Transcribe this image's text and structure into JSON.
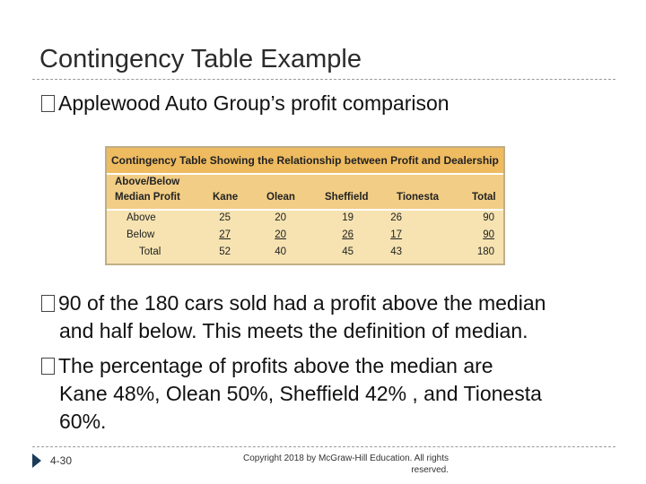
{
  "slide": {
    "title": "Contingency Table Example",
    "bullets": {
      "b1": "Applewood Auto Group’s profit comparison",
      "b2_line1": "90 of the 180 cars sold had a profit above the median",
      "b2_line2": "and half below. This meets the definition of median.",
      "b3_line1": "The percentage of profits above the median are",
      "b3_line2": "Kane 48%, Olean 50%, Sheffield 42% , and Tionesta",
      "b3_line3": "60%."
    }
  },
  "table": {
    "caption": "Contingency Table Showing the Relationship between Profit and Dealership",
    "header": {
      "row_label_line1": "Above/Below",
      "row_label_line2": "Median Profit",
      "columns": [
        "Kane",
        "Olean",
        "Sheffield",
        "Tionesta",
        "Total"
      ]
    },
    "rows": [
      {
        "label": "Above",
        "values": [
          "25",
          "20",
          "19",
          "26",
          "90"
        ]
      },
      {
        "label": "Below",
        "values": [
          "27",
          "20",
          "26",
          "17",
          "90"
        ]
      },
      {
        "label": "Total",
        "values": [
          "52",
          "40",
          "45",
          "43",
          "180"
        ]
      }
    ],
    "colors": {
      "caption_bg": "#eebb60",
      "header_bg": "#f2cd85",
      "body_bg": "#f6e3b1"
    }
  },
  "footer": {
    "slide_number": "4-30",
    "copyright_line1": "Copyright 2018 by McGraw-Hill Education. All rights",
    "copyright_line2": "reserved."
  }
}
